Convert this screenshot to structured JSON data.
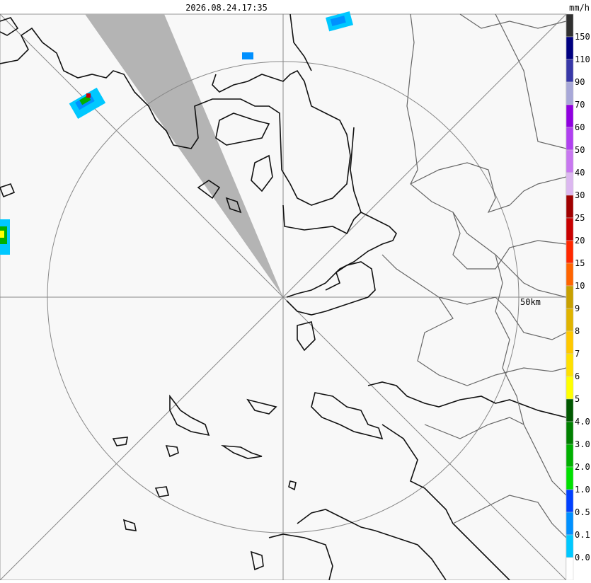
{
  "header": {
    "timestamp": "2026.08.24.17:35",
    "unit": "mm/h"
  },
  "map": {
    "range_label": "50km"
  },
  "legend": {
    "colors": [
      "#303030",
      "#000080",
      "#3838a8",
      "#a8a8d8",
      "#9000e0",
      "#b040f0",
      "#c878f0",
      "#dcb8f0",
      "#a00000",
      "#c80000",
      "#ff2800",
      "#ff6400",
      "#c8a000",
      "#e0b400",
      "#ffc800",
      "#ffe000",
      "#ffff00",
      "#005800",
      "#008000",
      "#00b000",
      "#00e000",
      "#0040ff",
      "#0090ff",
      "#00c8ff",
      "#ffffff"
    ],
    "labels": [
      "150",
      "110",
      "90",
      "70",
      "60",
      "50",
      "40",
      "30",
      "25",
      "20",
      "15",
      "10",
      "9",
      "8",
      "7",
      "6",
      "5",
      "4.0",
      "3.0",
      "2.0",
      "1.0",
      "0.5",
      "0.1",
      "0.0"
    ]
  }
}
